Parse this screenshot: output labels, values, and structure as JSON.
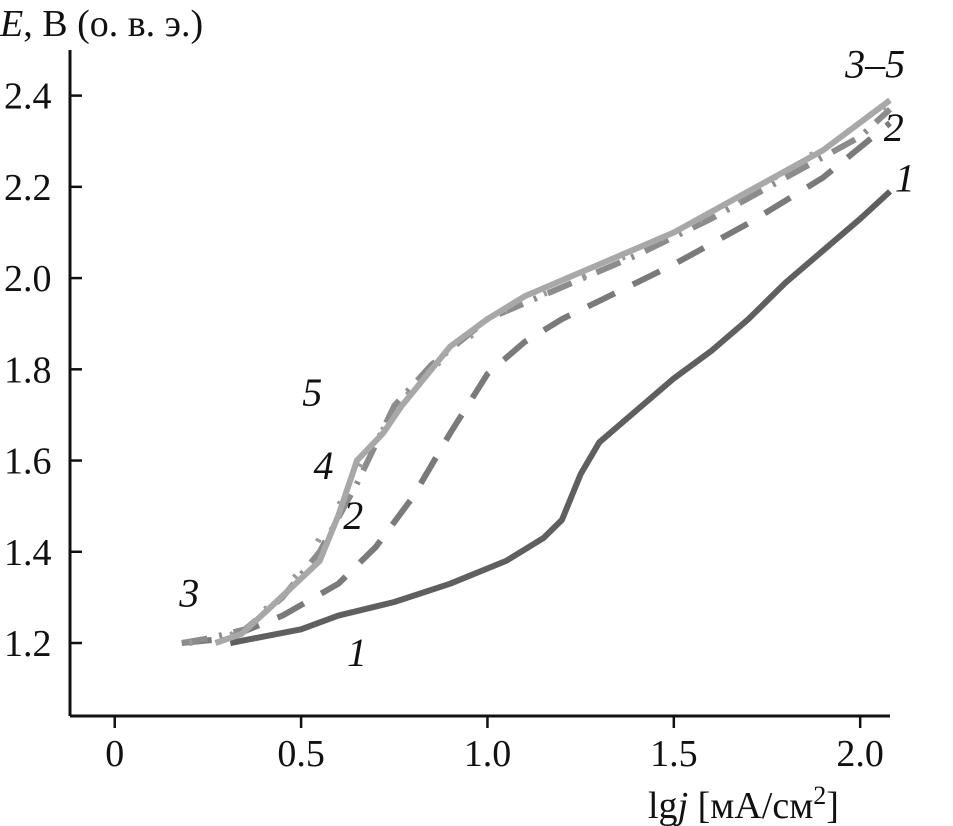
{
  "chart_data": {
    "type": "line",
    "ylabel_italic": "E",
    "ylabel_rest": ", В (о. в. э.)",
    "xlabel_lg": "lg",
    "xlabel_j": "j",
    "xlabel_unit": " [мА/см",
    "xlabel_sup": "2",
    "xlabel_close": "]",
    "xlim": [
      -0.12,
      2.08
    ],
    "ylim": [
      1.04,
      2.5
    ],
    "x_ticks": [
      {
        "value": 0,
        "label": "0"
      },
      {
        "value": 0.5,
        "label": "0.5"
      },
      {
        "value": 1.0,
        "label": "1.0"
      },
      {
        "value": 1.5,
        "label": "1.5"
      },
      {
        "value": 2.0,
        "label": "2.0"
      }
    ],
    "y_ticks": [
      {
        "value": 1.2,
        "label": "1.2"
      },
      {
        "value": 1.4,
        "label": "1.4"
      },
      {
        "value": 1.6,
        "label": "1.6"
      },
      {
        "value": 1.8,
        "label": "1.8"
      },
      {
        "value": 2.0,
        "label": "2.0"
      },
      {
        "value": 2.2,
        "label": "2.2"
      },
      {
        "value": 2.4,
        "label": "2.4"
      }
    ],
    "series": [
      {
        "id": "1",
        "color": "#5f5f5f",
        "dash": "solid",
        "points": [
          [
            0.31,
            1.2
          ],
          [
            0.5,
            1.23
          ],
          [
            0.6,
            1.26
          ],
          [
            0.75,
            1.29
          ],
          [
            0.9,
            1.33
          ],
          [
            1.05,
            1.38
          ],
          [
            1.15,
            1.43
          ],
          [
            1.2,
            1.47
          ],
          [
            1.25,
            1.57
          ],
          [
            1.3,
            1.64
          ],
          [
            1.4,
            1.71
          ],
          [
            1.5,
            1.78
          ],
          [
            1.6,
            1.84
          ],
          [
            1.7,
            1.91
          ],
          [
            1.8,
            1.99
          ],
          [
            1.9,
            2.06
          ],
          [
            2.0,
            2.13
          ],
          [
            2.08,
            2.19
          ]
        ]
      },
      {
        "id": "2",
        "color": "#7a7a7a",
        "dash": "long",
        "points": [
          [
            0.18,
            1.2
          ],
          [
            0.3,
            1.21
          ],
          [
            0.45,
            1.26
          ],
          [
            0.6,
            1.33
          ],
          [
            0.7,
            1.41
          ],
          [
            0.8,
            1.52
          ],
          [
            0.9,
            1.66
          ],
          [
            1.0,
            1.79
          ],
          [
            1.1,
            1.86
          ],
          [
            1.2,
            1.91
          ],
          [
            1.3,
            1.95
          ],
          [
            1.5,
            2.03
          ],
          [
            1.7,
            2.12
          ],
          [
            1.9,
            2.22
          ],
          [
            2.08,
            2.34
          ]
        ]
      },
      {
        "id": "3",
        "color": "#8c8c8c",
        "dash": "dashdot",
        "points": [
          [
            0.18,
            1.2
          ],
          [
            0.25,
            1.21
          ],
          [
            0.35,
            1.23
          ],
          [
            0.45,
            1.3
          ],
          [
            0.55,
            1.4
          ],
          [
            0.65,
            1.55
          ],
          [
            0.75,
            1.72
          ],
          [
            0.85,
            1.81
          ],
          [
            1.0,
            1.91
          ],
          [
            1.2,
            1.98
          ],
          [
            1.4,
            2.05
          ],
          [
            1.6,
            2.13
          ],
          [
            1.8,
            2.22
          ],
          [
            2.0,
            2.31
          ],
          [
            2.08,
            2.37
          ]
        ]
      },
      {
        "id": "4",
        "color": "#9a9a9a",
        "dash": "sparse",
        "points": [
          [
            0.2,
            1.2
          ],
          [
            0.3,
            1.21
          ],
          [
            0.4,
            1.27
          ],
          [
            0.5,
            1.36
          ],
          [
            0.6,
            1.5
          ],
          [
            0.68,
            1.62
          ],
          [
            0.78,
            1.74
          ],
          [
            0.9,
            1.84
          ],
          [
            1.05,
            1.93
          ],
          [
            1.25,
            2.0
          ],
          [
            1.45,
            2.08
          ],
          [
            1.65,
            2.16
          ],
          [
            1.85,
            2.26
          ],
          [
            2.08,
            2.38
          ]
        ]
      },
      {
        "id": "5",
        "color": "#a8a8a8",
        "dash": "solid",
        "points": [
          [
            0.27,
            1.2
          ],
          [
            0.34,
            1.22
          ],
          [
            0.42,
            1.28
          ],
          [
            0.55,
            1.38
          ],
          [
            0.6,
            1.48
          ],
          [
            0.65,
            1.6
          ],
          [
            0.72,
            1.66
          ],
          [
            0.77,
            1.72
          ],
          [
            0.9,
            1.85
          ],
          [
            1.0,
            1.91
          ],
          [
            1.1,
            1.96
          ],
          [
            1.3,
            2.03
          ],
          [
            1.5,
            2.1
          ],
          [
            1.7,
            2.19
          ],
          [
            1.9,
            2.28
          ],
          [
            2.08,
            2.39
          ]
        ]
      }
    ],
    "labels": [
      {
        "text": "1",
        "x": 0.65,
        "y": 1.15
      },
      {
        "text": "2",
        "x": 0.64,
        "y": 1.45
      },
      {
        "text": "2",
        "x": 2.09,
        "y": 2.3
      },
      {
        "text": "1",
        "x": 2.12,
        "y": 2.19
      },
      {
        "text": "3",
        "x": 0.2,
        "y": 1.28
      },
      {
        "text": "4",
        "x": 0.56,
        "y": 1.56
      },
      {
        "text": "5",
        "x": 0.53,
        "y": 1.72
      },
      {
        "text": "3–5",
        "x": 2.04,
        "y": 2.44
      }
    ]
  }
}
